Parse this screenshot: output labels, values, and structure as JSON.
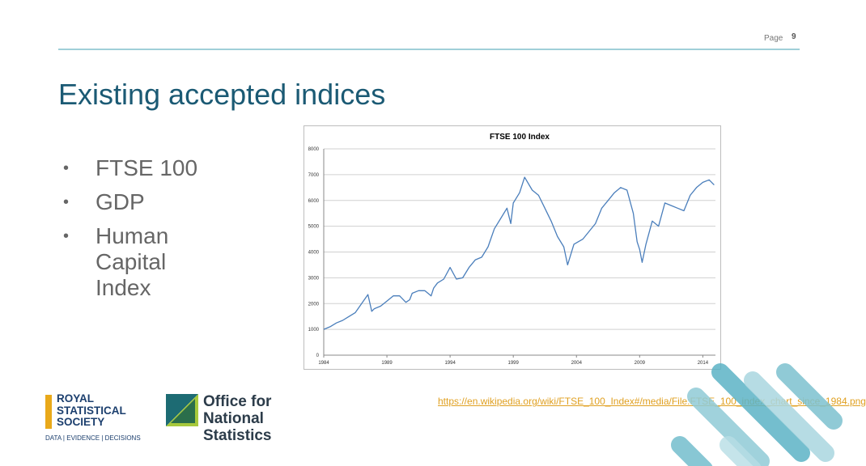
{
  "header": {
    "page_label": "Page",
    "page_number": "9"
  },
  "slide": {
    "title": "Existing accepted indices",
    "bullets": [
      "FTSE 100",
      "GDP",
      "Human Capital Index"
    ]
  },
  "source_link": {
    "text": "https://en.wikipedia.org/wiki/FTSE_100_Index#/media/File:FTSE_100_index_chart_since_1984.png"
  },
  "logos": {
    "rss": {
      "line1": "ROYAL",
      "line2": "STATISTICAL",
      "line3": "SOCIETY",
      "tagline": "DATA | EVIDENCE | DECISIONS"
    },
    "ons": {
      "line1": "Office for",
      "line2": "National Statistics"
    }
  },
  "colors": {
    "title": "#1b5a74",
    "link": "#e0a021",
    "series": "#4a7ebb",
    "accent_teal": "#5cb3c6"
  },
  "chart_data": {
    "type": "line",
    "title": "FTSE 100 Index",
    "xlabel": "",
    "ylabel": "",
    "xlim": [
      1984,
      2015
    ],
    "ylim": [
      0,
      8000
    ],
    "x_ticks": [
      "1984",
      "1989",
      "1994",
      "1999",
      "2004",
      "2009",
      "2014"
    ],
    "y_ticks": [
      "0",
      "1000",
      "2000",
      "3000",
      "4000",
      "5000",
      "6000",
      "7000",
      "8000"
    ],
    "grid": "horizontal",
    "series": [
      {
        "x": [
          1984.0,
          1984.5,
          1985.0,
          1985.5,
          1986.0,
          1986.5,
          1987.0,
          1987.5,
          1987.8,
          1988.0,
          1988.5,
          1989.0,
          1989.5,
          1990.0,
          1990.5,
          1990.8,
          1991.0,
          1991.5,
          1992.0,
          1992.5,
          1992.7,
          1993.0,
          1993.5,
          1994.0,
          1994.5,
          1995.0,
          1995.5,
          1996.0,
          1996.5,
          1997.0,
          1997.5,
          1998.0,
          1998.5,
          1998.8,
          1999.0,
          1999.5,
          1999.9,
          2000.5,
          2001.0,
          2001.5,
          2002.0,
          2002.5,
          2003.0,
          2003.3,
          2003.8,
          2004.5,
          2005.0,
          2005.5,
          2006.0,
          2006.5,
          2007.0,
          2007.5,
          2008.0,
          2008.5,
          2008.8,
          2009.0,
          2009.2,
          2009.5,
          2010.0,
          2010.5,
          2011.0,
          2011.5,
          2012.0,
          2012.5,
          2013.0,
          2013.5,
          2014.0,
          2014.5,
          2014.9
        ],
        "values": [
          1000,
          1100,
          1250,
          1350,
          1500,
          1650,
          2000,
          2350,
          1700,
          1800,
          1900,
          2100,
          2300,
          2300,
          2050,
          2150,
          2400,
          2500,
          2500,
          2300,
          2600,
          2800,
          2950,
          3400,
          2950,
          3000,
          3400,
          3700,
          3800,
          4200,
          4900,
          5300,
          5700,
          5100,
          5900,
          6300,
          6900,
          6400,
          6200,
          5700,
          5200,
          4600,
          4200,
          3500,
          4300,
          4500,
          4800,
          5100,
          5700,
          6000,
          6300,
          6500,
          6400,
          5500,
          4400,
          4100,
          3600,
          4300,
          5200,
          5000,
          5900,
          5800,
          5700,
          5600,
          6200,
          6500,
          6700,
          6800,
          6600
        ]
      }
    ]
  }
}
